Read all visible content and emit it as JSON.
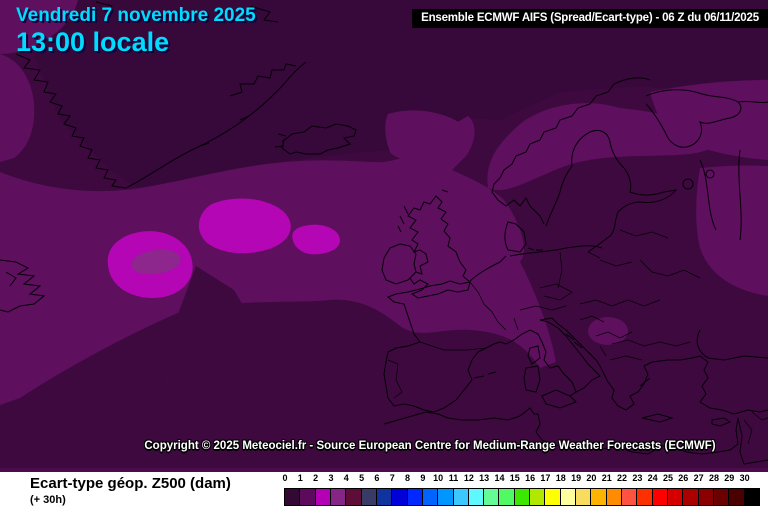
{
  "header": {
    "date_line": "Vendredi 7 novembre 2025",
    "time_line": "13:00 locale",
    "model_banner": "Ensemble ECMWF AIFS  (Spread/Ecart-type) - 06 Z du 06/11/2025"
  },
  "map": {
    "copyright": "Copyright © 2025 Meteociel.fr - Source European Centre for Medium-Range Weather Forecasts (ECMWF)",
    "palette": {
      "base": "#3E093E",
      "dark_band": "#37083A",
      "light_band": "#5E0F5E",
      "magenta_band": "#B406B4",
      "core_band": "#8D268D",
      "coastline": "#060008",
      "separator": "#4A0C4A"
    }
  },
  "legend": {
    "parameter_label": "Ecart-type géop. Z500 (dam)",
    "forecast_hour": "(+ 30h)",
    "tick_labels": [
      "0",
      "1",
      "2",
      "3",
      "4",
      "5",
      "6",
      "7",
      "8",
      "9",
      "10",
      "11",
      "12",
      "13",
      "14",
      "15",
      "16",
      "17",
      "18",
      "19",
      "20",
      "21",
      "22",
      "23",
      "24",
      "25",
      "26",
      "27",
      "28",
      "29",
      "30"
    ],
    "colors": [
      "#330833",
      "#5C0A5C",
      "#B400B4",
      "#852585",
      "#5E0C38",
      "#3A3A66",
      "#1133A0",
      "#0000D8",
      "#0028FF",
      "#0064FF",
      "#0096FF",
      "#3CC8FF",
      "#60F8FF",
      "#64FC96",
      "#50FA64",
      "#3CE800",
      "#B0E800",
      "#FFFF00",
      "#FDFE9E",
      "#F8DC60",
      "#FCB400",
      "#FF8C00",
      "#FF5240",
      "#FF3000",
      "#FF0000",
      "#D40000",
      "#AA0000",
      "#8A0000",
      "#6A0000",
      "#4A0000",
      "#000000"
    ]
  }
}
